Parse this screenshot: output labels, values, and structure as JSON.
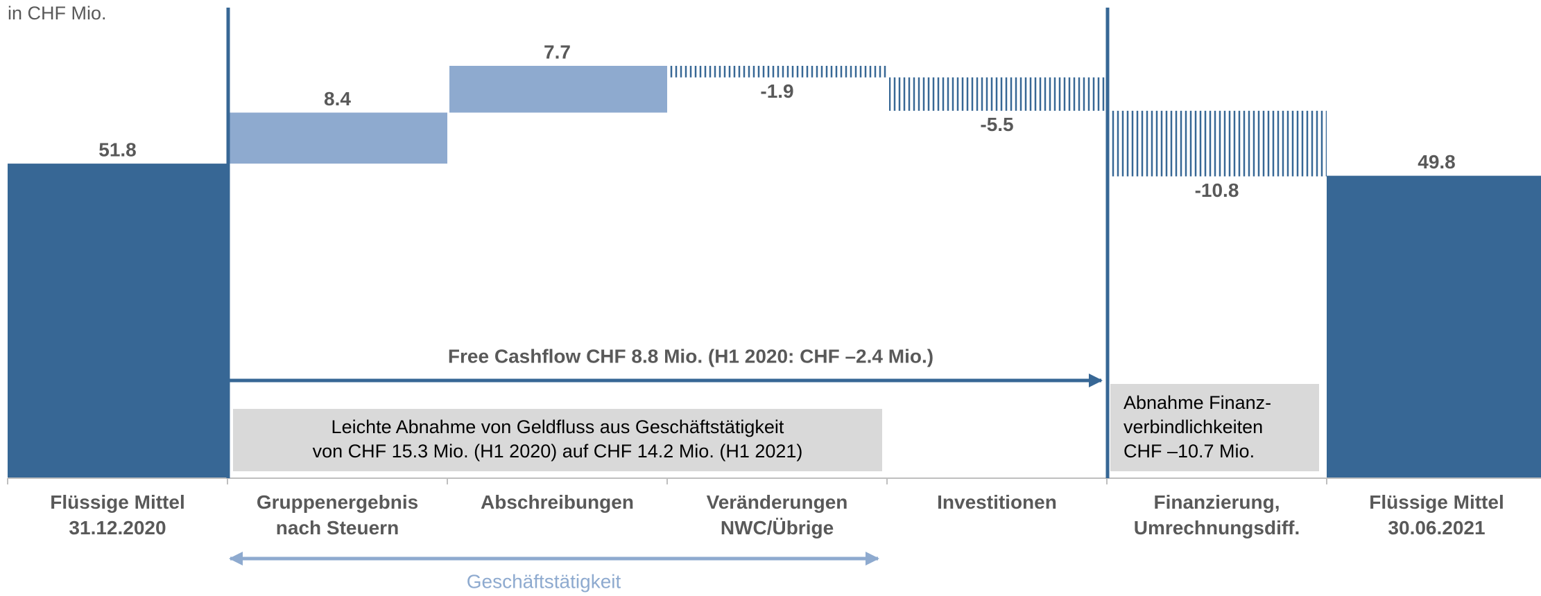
{
  "chart_data": {
    "type": "waterfall",
    "unit_label": "in CHF Mio.",
    "categories": [
      "Flüssige Mittel\n31.12.2020",
      "Gruppenergebnis\nnach Steuern",
      "Abschreibungen",
      "Veränderungen\nNWC/Übrige",
      "Investitionen",
      "Finanzierung,\nUmrechnungsdiff.",
      "Flüssige Mittel\n30.06.2021"
    ],
    "values": [
      51.8,
      8.4,
      7.7,
      -1.9,
      -5.5,
      -10.8,
      49.8
    ],
    "total_color": "#376795",
    "increase_color": "#8eaacf",
    "decrease_color": "#376795",
    "annotations": {
      "free_cashflow": "Free Cashflow CHF 8.8 Mio. (H1 2020: CHF –2.4 Mio.)",
      "operating_box": [
        "Leichte Abnahme von Geldfluss aus Geschäftstätigkeit",
        "von CHF 15.3 Mio. (H1 2020) auf CHF 14.2 Mio. (H1 2021)"
      ],
      "financing_box": [
        "Abnahme Finanz-",
        "verbindlichkeiten",
        "CHF –10.7 Mio."
      ],
      "operating_span": "Geschäftstätigkeit"
    }
  }
}
